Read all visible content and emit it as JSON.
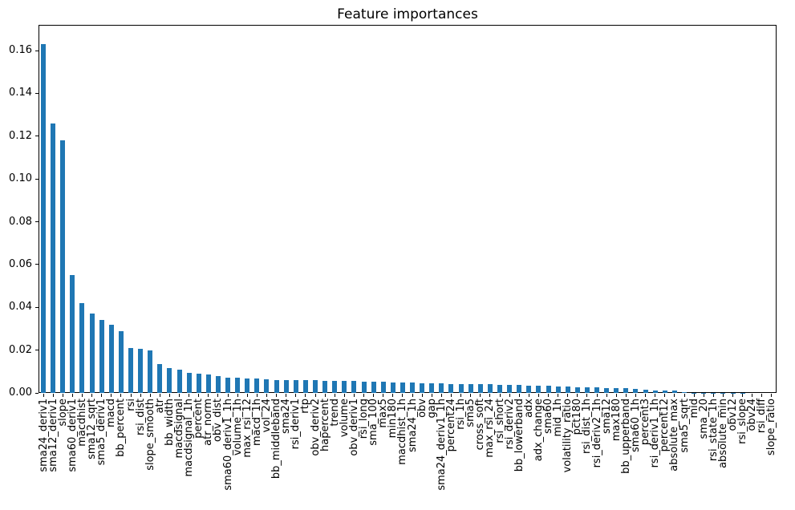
{
  "chart_data": {
    "type": "bar",
    "title": "Feature importances",
    "xlabel": "",
    "ylabel": "",
    "grid": false,
    "legend_position": "none",
    "x_tick_label_rotation": 90,
    "ylim": [
      0,
      0.172
    ],
    "ytick_labels": [
      "0.00",
      "0.02",
      "0.04",
      "0.06",
      "0.08",
      "0.10",
      "0.12",
      "0.14",
      "0.16"
    ],
    "bar_color": "#1f77b4",
    "axis_color": "#000000",
    "background_color": "#ffffff",
    "categories": [
      "sma24_deriv1",
      "sma12_deriv1",
      "slope",
      "sma60_deriv1",
      "macdhist",
      "sma12_sqrt",
      "sma5_deriv1",
      "macd",
      "bb_percent",
      "rsi",
      "rsi_dist",
      "slope_smooth",
      "atr",
      "bb_width",
      "macdsignal",
      "macdsignal_1h",
      "percent",
      "atr_norm",
      "obv_dist",
      "sma60_deriv1_1h",
      "volume_1h",
      "max_rsi_12",
      "macd_1h",
      "vol_24",
      "bb_middleband",
      "sma24",
      "rsi_deriv1",
      "rtp",
      "obv_deriv2",
      "hapercent",
      "trend",
      "volume",
      "obv_deriv1",
      "rsi_long",
      "sma_100",
      "max5",
      "min180",
      "macdhist_1h",
      "sma24_1h",
      "obv",
      "gap",
      "sma24_deriv1_1h",
      "percent24",
      "rsi_1h",
      "sma5",
      "cross_soft",
      "max_rsi_24",
      "rsi_short",
      "rsi_deriv2",
      "bb_lowerband",
      "adx",
      "adx_change",
      "sma60",
      "mid_1h",
      "volatility_ratio",
      "pct180",
      "rsi_dist_1h",
      "rsi_deriv2_1h",
      "sma12",
      "max180",
      "bb_upperband",
      "sma60_1h",
      "percent3",
      "rsi_deriv1_1h",
      "percent12",
      "absolute_max",
      "sma5_sqrt",
      "mid",
      "sma_20",
      "rsi_state_1h",
      "absolute_min",
      "obv12",
      "rsi_slope",
      "obv24",
      "rsi_diff",
      "slope_ratio"
    ],
    "values": [
      0.163,
      0.126,
      0.118,
      0.055,
      0.042,
      0.037,
      0.034,
      0.032,
      0.029,
      0.021,
      0.0205,
      0.0198,
      0.0135,
      0.0117,
      0.0107,
      0.0093,
      0.0091,
      0.0087,
      0.008,
      0.0073,
      0.0072,
      0.0066,
      0.0066,
      0.0064,
      0.0062,
      0.0061,
      0.0061,
      0.0059,
      0.0059,
      0.0058,
      0.0057,
      0.0056,
      0.0055,
      0.0054,
      0.0053,
      0.0051,
      0.005,
      0.0049,
      0.0048,
      0.0047,
      0.0045,
      0.0046,
      0.0043,
      0.0043,
      0.0042,
      0.004,
      0.004,
      0.0038,
      0.0037,
      0.0037,
      0.0035,
      0.0035,
      0.0034,
      0.003,
      0.0029,
      0.0028,
      0.0026,
      0.0025,
      0.0023,
      0.0022,
      0.0021,
      0.0019,
      0.0017,
      0.0013,
      0.0012,
      0.001,
      0.0004,
      0.0002,
      0.0001,
      0.0001,
      0.0001,
      0.0001,
      0.0001,
      0.0,
      0.0,
      0.0
    ]
  }
}
